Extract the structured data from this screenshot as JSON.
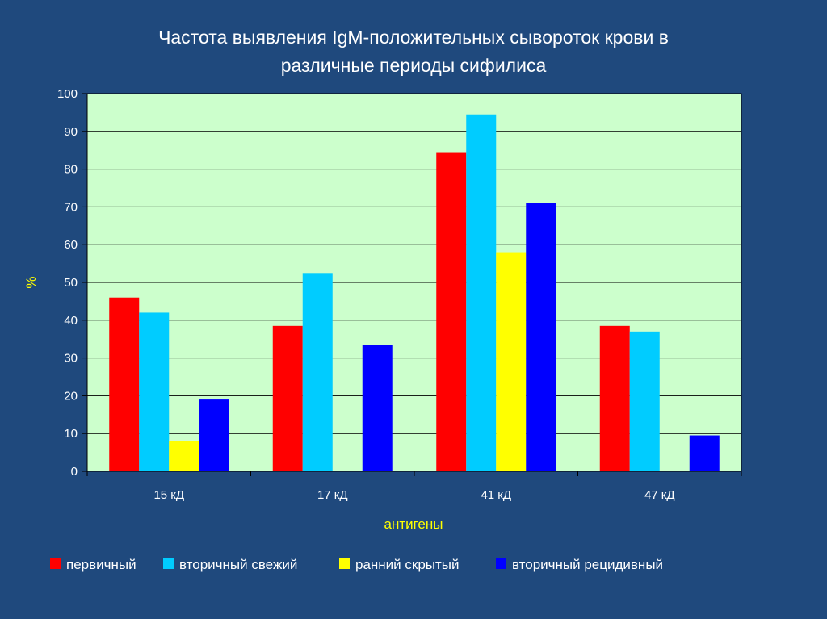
{
  "chart_data": {
    "type": "bar",
    "title_lines": [
      "Частота выявления IgM-положительных сывороток крови в",
      "различные периоды сифилиса"
    ],
    "xlabel": "антигены",
    "ylabel": "%",
    "ylim": [
      0,
      100
    ],
    "ytick_step": 10,
    "grid": true,
    "legend_position": "bottom",
    "categories": [
      "15 кД",
      "17 кД",
      "41 кД",
      "47 кД"
    ],
    "series": [
      {
        "name": "первичный",
        "color": "#FF0000",
        "values": [
          46,
          38.5,
          84.5,
          38.5
        ]
      },
      {
        "name": "вторичный свежий",
        "color": "#00CCFF",
        "values": [
          42,
          52.5,
          94.5,
          37
        ]
      },
      {
        "name": "ранний скрытый",
        "color": "#FFFF00",
        "values": [
          8,
          0,
          58,
          0
        ]
      },
      {
        "name": "вторичный рецидивный",
        "color": "#0000FF",
        "values": [
          19,
          33.5,
          71,
          9.5
        ]
      }
    ],
    "colors": {
      "background": "#1F497D",
      "plot_area": "#CCFFCC",
      "title": "#FFFFFF",
      "axis_title": "#FFFF00"
    }
  }
}
